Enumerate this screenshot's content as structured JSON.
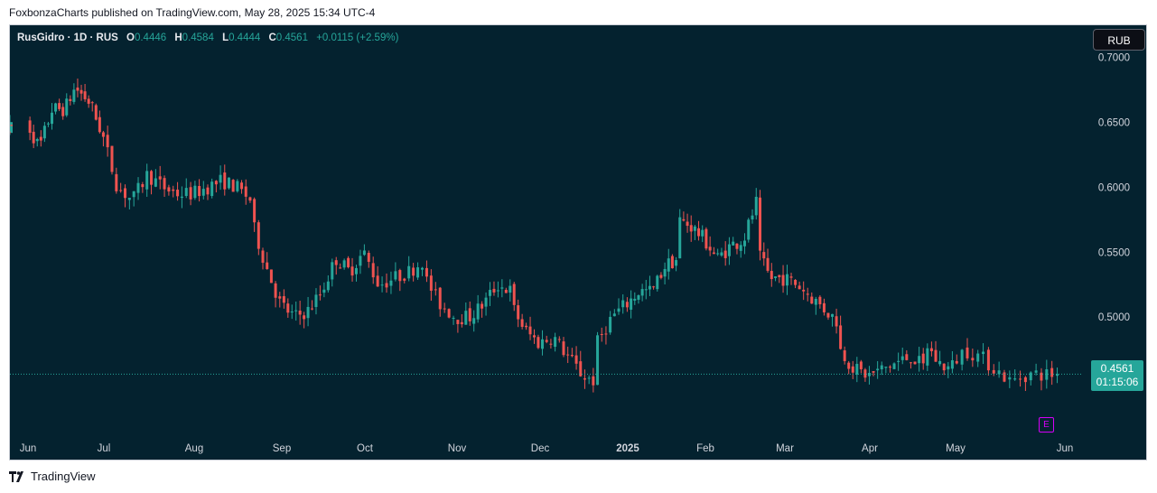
{
  "caption": "FoxbonzaCharts published on TradingView.com, May 28, 2025 15:34 UTC-4",
  "legend": {
    "symbol": "RusGidro · 1D · RUS",
    "o_label": "O",
    "o_value": "0.4446",
    "h_label": "H",
    "h_value": "0.4584",
    "l_label": "L",
    "l_value": "0.4444",
    "c_label": "C",
    "c_value": "0.4561",
    "change": "+0.0115 (+2.59%)"
  },
  "currency_button": "RUB",
  "last_price": {
    "value": "0.4561",
    "countdown": "01:15:06"
  },
  "earnings_marker": "E",
  "brand": "TradingView",
  "colors": {
    "up": "#26a69a",
    "down": "#ef5350",
    "background": "#04222f",
    "axis_text": "#d1d4dc",
    "earnings": "#d500f9"
  },
  "chart_data": {
    "type": "candlestick",
    "title": "RusGidro · 1D · RUS",
    "currency": "RUB",
    "y_ticks": [
      "0.7000",
      "0.6500",
      "0.6000",
      "0.5500",
      "0.5000"
    ],
    "ylim": [
      0.4244,
      0.701
    ],
    "x_ticks": [
      "Jun",
      "Jul",
      "Aug",
      "Sep",
      "Oct",
      "Nov",
      "Dec",
      "2025",
      "Feb",
      "Mar",
      "Apr",
      "May",
      "Jun"
    ],
    "x_tick_months": [
      0,
      1,
      2,
      3,
      4,
      5,
      6,
      7,
      8,
      9,
      10,
      11,
      12
    ],
    "grid": false,
    "last_close": 0.4561,
    "monthly_path": [
      {
        "month": "Jun",
        "points": [
          0.69,
          0.64,
          0.65,
          0.63,
          0.66,
          0.66,
          0.68
        ]
      },
      {
        "month": "Jul",
        "points": [
          0.675,
          0.665,
          0.64,
          0.6,
          0.59,
          0.61,
          0.6
        ]
      },
      {
        "month": "Aug",
        "points": [
          0.6,
          0.595,
          0.595,
          0.6,
          0.605,
          0.6,
          0.59
        ]
      },
      {
        "month": "Sep",
        "points": [
          0.575,
          0.54,
          0.51,
          0.5,
          0.505,
          0.52,
          0.545
        ]
      },
      {
        "month": "Oct",
        "points": [
          0.545,
          0.535,
          0.55,
          0.525,
          0.53,
          0.535,
          0.545
        ]
      },
      {
        "month": "Nov",
        "points": [
          0.53,
          0.51,
          0.5,
          0.5,
          0.51,
          0.525,
          0.52
        ]
      },
      {
        "month": "Dec",
        "points": [
          0.51,
          0.49,
          0.48,
          0.485,
          0.47,
          0.455,
          0.45
        ]
      },
      {
        "month": "2025",
        "points": [
          0.48,
          0.5,
          0.51,
          0.52,
          0.52,
          0.54,
          0.545
        ]
      },
      {
        "month": "Feb",
        "points": [
          0.575,
          0.57,
          0.56,
          0.545,
          0.555,
          0.56,
          0.59
        ]
      },
      {
        "month": "Mar",
        "points": [
          0.55,
          0.53,
          0.53,
          0.525,
          0.515,
          0.505,
          0.495
        ]
      },
      {
        "month": "Apr",
        "points": [
          0.475,
          0.46,
          0.455,
          0.46,
          0.465,
          0.47,
          0.46
        ]
      },
      {
        "month": "May",
        "points": [
          0.48,
          0.465,
          0.46,
          0.475,
          0.47,
          0.46,
          0.45,
          0.456
        ]
      }
    ]
  }
}
